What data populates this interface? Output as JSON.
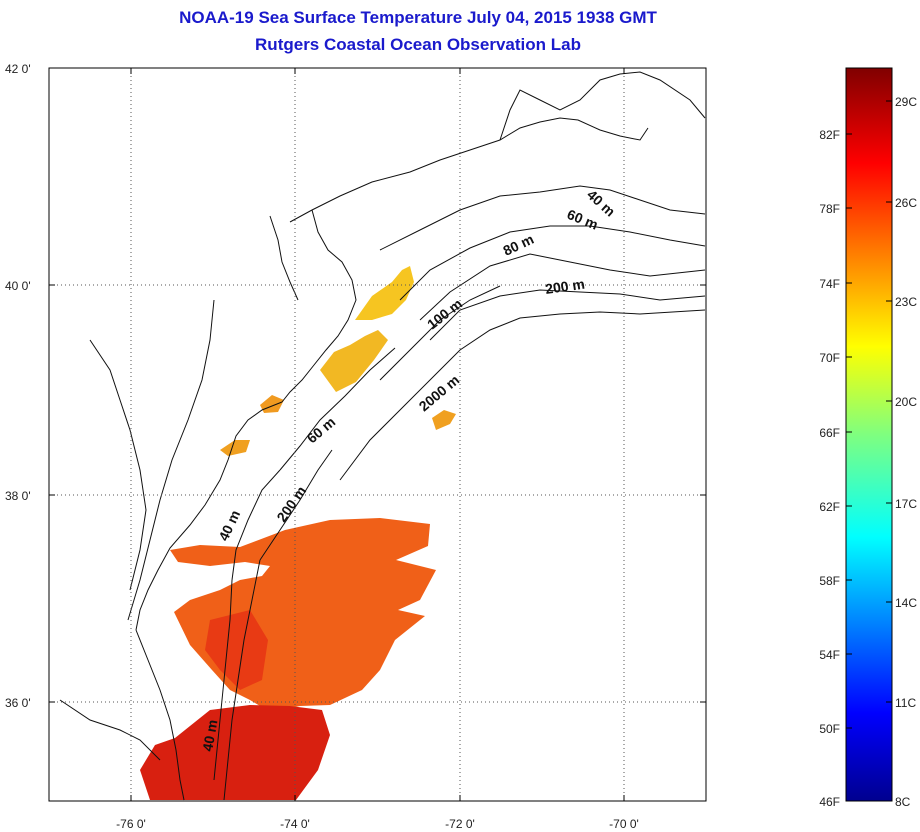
{
  "title": {
    "line1": "NOAA-19 Sea Surface Temperature July 04, 2015 1938 GMT",
    "line2": "Rutgers Coastal Ocean Observation Lab"
  },
  "map": {
    "lat_ticks": [
      {
        "value": 42,
        "label": "42 0'"
      },
      {
        "value": 40,
        "label": "40 0'"
      },
      {
        "value": 38,
        "label": "38 0'"
      },
      {
        "value": 36,
        "label": "36 0'"
      }
    ],
    "lon_ticks": [
      {
        "value": -76,
        "label": "-76 0'"
      },
      {
        "value": -74,
        "label": "-74 0'"
      },
      {
        "value": -72,
        "label": "-72 0'"
      },
      {
        "value": -70,
        "label": "-70 0'"
      }
    ],
    "lon_range": [
      -77.0,
      -69.0
    ],
    "lat_range": [
      35.0,
      42.0
    ],
    "grid": "dotted",
    "depth_labels": [
      "40 m",
      "60 m",
      "80 m",
      "200 m",
      "100 m",
      "2000 m",
      "60 m",
      "200 m",
      "40 m",
      "40 m"
    ]
  },
  "colorbar": {
    "fahrenheit_labels": [
      "82F",
      "78F",
      "74F",
      "70F",
      "66F",
      "62F",
      "58F",
      "54F",
      "50F",
      "46F"
    ],
    "celsius_labels": [
      "29C",
      "26C",
      "23C",
      "20C",
      "17C",
      "14C",
      "11C",
      "8C"
    ],
    "colormap": "jet"
  }
}
